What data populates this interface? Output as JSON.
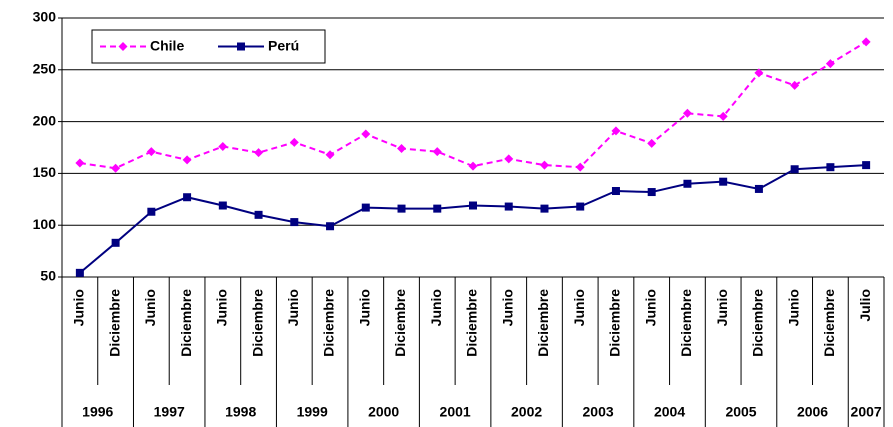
{
  "chart_data": {
    "type": "line",
    "categories": [
      "Junio",
      "Diciembre",
      "Junio",
      "Diciembre",
      "Junio",
      "Diciembre",
      "Junio",
      "Diciembre",
      "Junio",
      "Diciembre",
      "Junio",
      "Diciembre",
      "Junio",
      "Diciembre",
      "Junio",
      "Diciembre",
      "Junio",
      "Diciembre",
      "Junio",
      "Diciembre",
      "Junio",
      "Diciembre",
      "Julio"
    ],
    "x_groups": [
      "1996",
      null,
      "1997",
      null,
      "1998",
      null,
      "1999",
      null,
      "2000",
      null,
      "2001",
      null,
      "2002",
      null,
      "2003",
      null,
      "2004",
      null,
      "2005",
      null,
      "2006",
      null,
      "2007"
    ],
    "series": [
      {
        "name": "Chile",
        "color": "#ff00ff",
        "dashed": true,
        "marker": "diamond",
        "values": [
          160,
          155,
          171,
          163,
          176,
          170,
          180,
          168,
          188,
          174,
          171,
          157,
          164,
          158,
          156,
          191,
          179,
          208,
          205,
          247,
          235,
          256,
          277
        ]
      },
      {
        "name": "Perú",
        "color": "#000080",
        "dashed": false,
        "marker": "square",
        "values": [
          54,
          83,
          113,
          127,
          119,
          110,
          103,
          99,
          117,
          116,
          116,
          119,
          118,
          116,
          118,
          133,
          132,
          140,
          142,
          135,
          154,
          156,
          158
        ]
      }
    ],
    "ylim": [
      50,
      300
    ],
    "yticks": [
      50,
      100,
      150,
      200,
      250,
      300
    ],
    "grid": true,
    "legend": "upper left"
  }
}
